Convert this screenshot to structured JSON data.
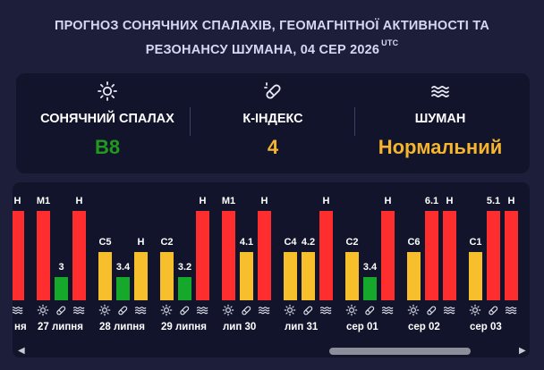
{
  "header": {
    "title_line1": "ПРОГНОЗ СОНЯЧНИХ СПАЛАХІВ, ГЕОМАГНІТНОЇ АКТИВНОСТІ ТА",
    "title_line2": "РЕЗОНАНСУ ШУМАНА, 04 СЕР 2026",
    "timezone": "UTC"
  },
  "stats": [
    {
      "icon": "sun-icon",
      "label": "СОНЯЧНИЙ СПАЛАХ",
      "value": "B8",
      "color": "#1f9a1f"
    },
    {
      "icon": "magnet-icon",
      "label": "К-ІНДЕКС",
      "value": "4",
      "color": "#f5b52e"
    },
    {
      "icon": "waves-icon",
      "label": "ШУМАН",
      "value": "Нормальний",
      "color": "#f5b52e"
    }
  ],
  "colors": {
    "red": "#ff2e2e",
    "yellow": "#f8bf2c",
    "green": "#15a82a",
    "icon": "#d8d9e6"
  },
  "timeline": {
    "days": [
      {
        "label": "ня",
        "flare": null,
        "kp": null,
        "schumann": {
          "label": "Н",
          "level": "red"
        }
      },
      {
        "label": "27 липня",
        "flare": {
          "label": "M1",
          "level": "red"
        },
        "kp": {
          "label": "3",
          "level": "green"
        },
        "schumann": {
          "label": "Н",
          "level": "red"
        }
      },
      {
        "label": "28 липня",
        "flare": {
          "label": "C5",
          "level": "yellow"
        },
        "kp": {
          "label": "3.4",
          "level": "green"
        },
        "schumann": {
          "label": "Н",
          "level": "yellow"
        }
      },
      {
        "label": "29 липня",
        "flare": {
          "label": "C2",
          "level": "yellow"
        },
        "kp": {
          "label": "3.2",
          "level": "green"
        },
        "schumann": {
          "label": "Н",
          "level": "red"
        }
      },
      {
        "label": "лип 30",
        "flare": {
          "label": "M1",
          "level": "red"
        },
        "kp": {
          "label": "4.1",
          "level": "yellow"
        },
        "schumann": {
          "label": "Н",
          "level": "red"
        }
      },
      {
        "label": "лип 31",
        "flare": {
          "label": "C4",
          "level": "yellow"
        },
        "kp": {
          "label": "4.2",
          "level": "yellow"
        },
        "schumann": {
          "label": "Н",
          "level": "red"
        }
      },
      {
        "label": "сер 01",
        "flare": {
          "label": "C2",
          "level": "yellow"
        },
        "kp": {
          "label": "3.4",
          "level": "green"
        },
        "schumann": {
          "label": "Н",
          "level": "red"
        }
      },
      {
        "label": "сер 02",
        "flare": {
          "label": "C6",
          "level": "yellow"
        },
        "kp": {
          "label": "6.1",
          "level": "red"
        },
        "schumann": {
          "label": "Н",
          "level": "red"
        }
      },
      {
        "label": "сер 03",
        "flare": {
          "label": "C1",
          "level": "yellow"
        },
        "kp": {
          "label": "5.1",
          "level": "red"
        },
        "schumann": {
          "label": "Н",
          "level": "red"
        }
      }
    ]
  }
}
